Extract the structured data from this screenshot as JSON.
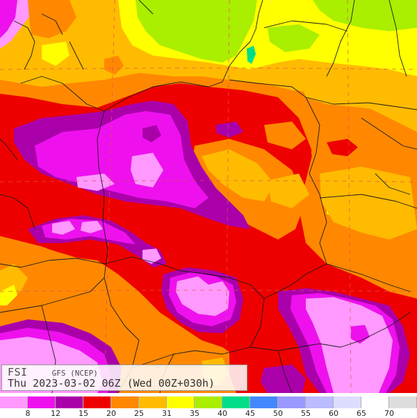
{
  "map": {
    "product": "FSI",
    "model": "GFS (NCEP)",
    "valid_time": "Thu 2023-03-02 06Z (Wed 00Z+030h)",
    "colors": {
      "c8": "#ff99ff",
      "c12": "#ee11ee",
      "c15": "#aa00aa",
      "c20": "#ee0000",
      "c25": "#ff8800",
      "c31": "#ffbb00",
      "c35": "#ffff00",
      "c40": "#aaee00",
      "c45": "#00dd88",
      "c50": "#4488ff",
      "c55": "#9999ff",
      "c60": "#bbbbff",
      "c65": "#ddddff",
      "c70": "#ffffff",
      "c70plus": "#dddddd"
    }
  },
  "legend": {
    "swatches": [
      "#ff99ff",
      "#ee11ee",
      "#aa00aa",
      "#ee0000",
      "#ff8800",
      "#ffbb00",
      "#ffff00",
      "#aaee00",
      "#00dd88",
      "#4488ff",
      "#9999ff",
      "#bbbbff",
      "#ddddff",
      "#ffffff",
      "#dddddd"
    ],
    "labels": [
      "8",
      "12",
      "15",
      "20",
      "25",
      "31",
      "35",
      "40",
      "45",
      "50",
      "55",
      "60",
      "65",
      "70"
    ]
  }
}
